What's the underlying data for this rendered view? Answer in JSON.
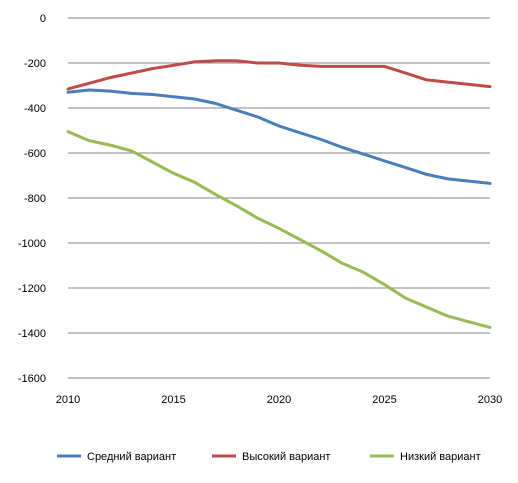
{
  "chart_data": {
    "type": "line",
    "title": "",
    "xlabel": "",
    "ylabel": "",
    "x": [
      2010,
      2011,
      2012,
      2013,
      2014,
      2015,
      2016,
      2017,
      2018,
      2019,
      2020,
      2021,
      2022,
      2023,
      2024,
      2025,
      2026,
      2027,
      2028,
      2029,
      2030
    ],
    "xlim": [
      2010,
      2030
    ],
    "ylim": [
      -1600,
      0
    ],
    "xticks": [
      "2010",
      "2015",
      "2020",
      "2025",
      "2030"
    ],
    "yticks": [
      "0",
      "-200",
      "-400",
      "-600",
      "-800",
      "-1000",
      "-1200",
      "-1400",
      "-1600"
    ],
    "grid": "horizontal",
    "legend_position": "bottom",
    "series": [
      {
        "name": "Средний вариант",
        "color": "#4a7ebb",
        "values": [
          -330,
          -320,
          -325,
          -335,
          -340,
          -350,
          -360,
          -380,
          -410,
          -440,
          -480,
          -510,
          -540,
          -575,
          -605,
          -635,
          -665,
          -695,
          -715,
          -725,
          -735
        ]
      },
      {
        "name": "Высокий вариант",
        "color": "#be4b48",
        "values": [
          -315,
          -290,
          -265,
          -245,
          -225,
          -210,
          -195,
          -190,
          -190,
          -200,
          -200,
          -210,
          -215,
          -215,
          -215,
          -215,
          -245,
          -275,
          -285,
          -295,
          -305
        ]
      },
      {
        "name": "Низкий вариант",
        "color": "#98b954",
        "values": [
          -505,
          -545,
          -565,
          -590,
          -640,
          -690,
          -730,
          -785,
          -835,
          -890,
          -935,
          -985,
          -1035,
          -1090,
          -1130,
          -1185,
          -1245,
          -1285,
          -1325,
          -1350,
          -1375
        ]
      }
    ]
  }
}
